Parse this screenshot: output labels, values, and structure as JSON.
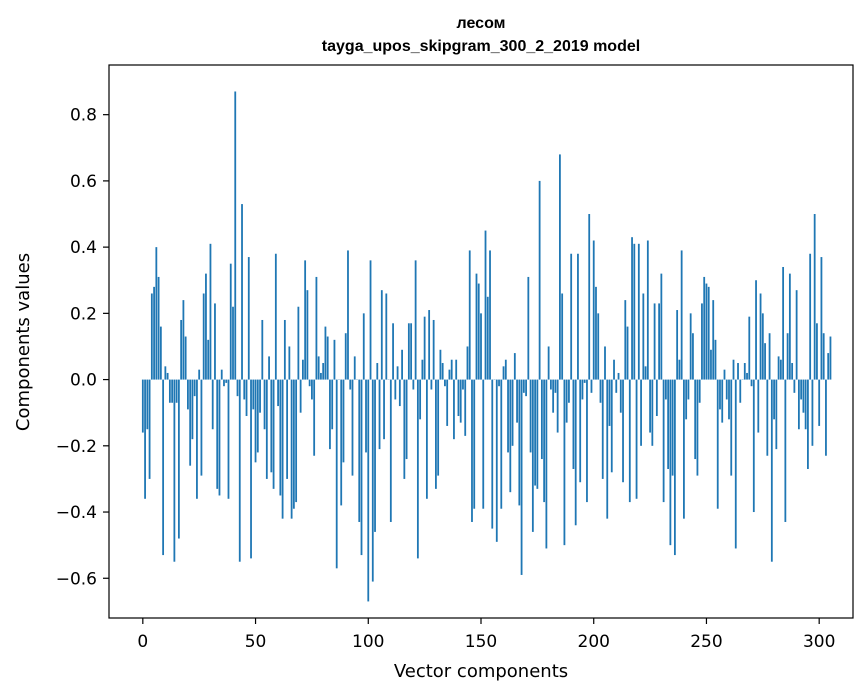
{
  "chart_data": {
    "type": "bar",
    "title": "лесом",
    "subtitle": "tayga_upos_skipgram_300_2_2019 model",
    "xlabel": "Vector components",
    "ylabel": "Components values",
    "xlim": [
      -15,
      315
    ],
    "ylim": [
      -0.72,
      0.95
    ],
    "xticks": [
      0,
      50,
      100,
      150,
      200,
      250,
      300
    ],
    "yticks": [
      -0.6,
      -0.4,
      -0.2,
      0.0,
      0.2,
      0.4,
      0.6,
      0.8
    ],
    "ytick_labels": [
      "−0.6",
      "−0.4",
      "−0.2",
      "0.0",
      "0.2",
      "0.4",
      "0.6",
      "0.8"
    ],
    "bar_color": "#1f77b4",
    "grid": false,
    "values": [
      -0.16,
      -0.36,
      -0.15,
      -0.3,
      0.26,
      0.28,
      0.4,
      0.31,
      0.16,
      -0.53,
      0.04,
      0.02,
      -0.07,
      -0.07,
      -0.55,
      -0.07,
      -0.48,
      0.18,
      0.24,
      0.13,
      -0.09,
      -0.26,
      -0.18,
      -0.05,
      -0.36,
      0.03,
      -0.29,
      0.26,
      0.32,
      0.12,
      0.41,
      -0.15,
      0.23,
      -0.33,
      -0.35,
      0.03,
      -0.02,
      -0.01,
      -0.36,
      0.35,
      0.22,
      0.87,
      -0.05,
      -0.55,
      0.53,
      -0.06,
      -0.11,
      0.37,
      -0.54,
      -0.09,
      -0.25,
      -0.22,
      -0.1,
      0.18,
      -0.15,
      -0.3,
      0.07,
      -0.28,
      -0.33,
      0.38,
      -0.08,
      -0.35,
      -0.42,
      0.18,
      -0.3,
      0.1,
      -0.42,
      -0.39,
      -0.37,
      0.22,
      -0.1,
      0.06,
      0.36,
      0.27,
      -0.02,
      -0.06,
      -0.23,
      0.31,
      0.07,
      0.02,
      0.05,
      0.16,
      0.13,
      -0.21,
      -0.15,
      0.12,
      -0.57,
      0.0,
      -0.38,
      -0.25,
      0.14,
      0.39,
      -0.03,
      -0.29,
      0.07,
      0.0,
      -0.43,
      -0.53,
      0.2,
      -0.22,
      -0.67,
      0.36,
      -0.61,
      -0.46,
      0.05,
      -0.21,
      0.27,
      -0.18,
      0.26,
      0.0,
      -0.43,
      0.17,
      -0.06,
      0.04,
      -0.08,
      0.09,
      -0.3,
      -0.24,
      0.17,
      0.17,
      -0.03,
      0.36,
      -0.54,
      -0.12,
      0.06,
      0.19,
      -0.36,
      0.21,
      -0.03,
      0.18,
      -0.33,
      -0.29,
      0.09,
      0.05,
      -0.02,
      -0.14,
      0.03,
      0.06,
      -0.18,
      0.06,
      -0.11,
      -0.13,
      -0.03,
      -0.17,
      0.1,
      0.39,
      -0.43,
      -0.39,
      0.32,
      0.29,
      0.2,
      -0.39,
      0.45,
      0.25,
      0.39,
      -0.45,
      0.0,
      -0.49,
      -0.02,
      -0.39,
      0.04,
      0.06,
      -0.22,
      -0.34,
      -0.2,
      0.08,
      -0.13,
      -0.38,
      -0.59,
      -0.04,
      -0.05,
      0.31,
      -0.22,
      -0.46,
      -0.32,
      -0.33,
      0.6,
      -0.24,
      -0.37,
      -0.51,
      0.1,
      -0.03,
      -0.1,
      -0.04,
      -0.16,
      0.68,
      0.26,
      -0.5,
      -0.13,
      -0.07,
      0.38,
      -0.27,
      -0.44,
      0.38,
      -0.31,
      -0.06,
      -0.01,
      -0.37,
      0.5,
      -0.04,
      0.42,
      0.28,
      0.2,
      -0.07,
      -0.3,
      0.1,
      -0.42,
      -0.14,
      -0.28,
      0.06,
      -0.04,
      0.02,
      -0.1,
      -0.31,
      0.24,
      0.16,
      -0.37,
      0.43,
      0.41,
      -0.36,
      0.41,
      -0.2,
      0.26,
      0.04,
      0.42,
      -0.16,
      -0.2,
      0.23,
      -0.11,
      0.23,
      0.32,
      -0.37,
      -0.06,
      -0.27,
      -0.5,
      -0.29,
      -0.53,
      0.21,
      0.06,
      0.39,
      -0.42,
      -0.12,
      -0.06,
      0.2,
      0.14,
      -0.24,
      -0.29,
      -0.07,
      0.23,
      0.31,
      0.29,
      0.28,
      0.09,
      0.24,
      0.12,
      -0.39,
      -0.09,
      -0.13,
      0.03,
      -0.06,
      -0.12,
      -0.29,
      0.06,
      -0.51,
      0.05,
      -0.07,
      0.0,
      0.05,
      0.02,
      0.19,
      -0.02,
      -0.4,
      0.3,
      -0.16,
      0.26,
      0.2,
      0.11,
      -0.23,
      0.14,
      -0.55,
      -0.12,
      -0.21,
      0.07,
      0.06,
      0.34,
      -0.43,
      0.14,
      0.32,
      0.05,
      -0.04,
      0.27,
      -0.15,
      -0.06,
      -0.1,
      -0.15,
      -0.27,
      0.38,
      -0.2,
      0.5,
      0.17,
      -0.14,
      0.37,
      0.14,
      -0.23,
      0.08,
      0.13
    ]
  }
}
